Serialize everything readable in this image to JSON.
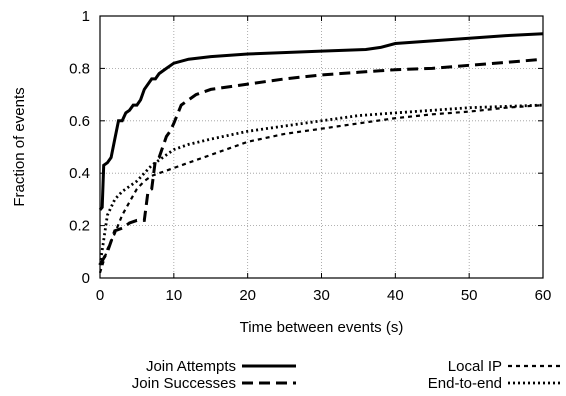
{
  "chart_data": {
    "type": "line",
    "title": "",
    "xlabel": "Time between events (s)",
    "ylabel": "Fraction of events",
    "xlim": [
      0,
      60
    ],
    "ylim": [
      0,
      1
    ],
    "x_ticks": [
      "0",
      "10",
      "20",
      "30",
      "40",
      "50",
      "60"
    ],
    "y_ticks": [
      "0",
      "0.2",
      "0.4",
      "0.6",
      "0.8",
      "1"
    ],
    "grid": true,
    "legend_position": "bottom",
    "series": [
      {
        "name": "Join Attempts",
        "style": "solid",
        "points": [
          [
            0,
            0.26
          ],
          [
            0.3,
            0.27
          ],
          [
            0.5,
            0.43
          ],
          [
            1,
            0.44
          ],
          [
            1.5,
            0.46
          ],
          [
            2,
            0.53
          ],
          [
            2.5,
            0.6
          ],
          [
            3,
            0.6
          ],
          [
            3.5,
            0.63
          ],
          [
            4,
            0.64
          ],
          [
            4.5,
            0.66
          ],
          [
            5,
            0.66
          ],
          [
            5.5,
            0.68
          ],
          [
            6,
            0.72
          ],
          [
            7,
            0.76
          ],
          [
            7.5,
            0.76
          ],
          [
            8,
            0.78
          ],
          [
            9,
            0.8
          ],
          [
            10,
            0.82
          ],
          [
            12,
            0.835
          ],
          [
            15,
            0.845
          ],
          [
            20,
            0.855
          ],
          [
            30,
            0.866
          ],
          [
            36,
            0.872
          ],
          [
            38,
            0.88
          ],
          [
            40,
            0.895
          ],
          [
            45,
            0.905
          ],
          [
            50,
            0.915
          ],
          [
            55,
            0.925
          ],
          [
            60,
            0.932
          ]
        ]
      },
      {
        "name": "Join Successes",
        "style": "dashed",
        "points": [
          [
            0,
            0.05
          ],
          [
            1,
            0.1
          ],
          [
            2,
            0.18
          ],
          [
            3,
            0.19
          ],
          [
            4,
            0.21
          ],
          [
            5,
            0.22
          ],
          [
            6,
            0.22
          ],
          [
            6.5,
            0.33
          ],
          [
            7,
            0.34
          ],
          [
            7.5,
            0.45
          ],
          [
            8,
            0.46
          ],
          [
            9,
            0.54
          ],
          [
            9.5,
            0.56
          ],
          [
            10,
            0.59
          ],
          [
            11,
            0.66
          ],
          [
            13,
            0.7
          ],
          [
            15,
            0.72
          ],
          [
            20,
            0.74
          ],
          [
            25,
            0.76
          ],
          [
            30,
            0.775
          ],
          [
            35,
            0.785
          ],
          [
            40,
            0.795
          ],
          [
            45,
            0.8
          ],
          [
            50,
            0.812
          ],
          [
            55,
            0.823
          ],
          [
            60,
            0.835
          ]
        ]
      },
      {
        "name": "Local IP",
        "style": "short-dashed",
        "points": [
          [
            0,
            0.02
          ],
          [
            1,
            0.11
          ],
          [
            2,
            0.17
          ],
          [
            3,
            0.24
          ],
          [
            4,
            0.29
          ],
          [
            5,
            0.34
          ],
          [
            6,
            0.37
          ],
          [
            7,
            0.39
          ],
          [
            8,
            0.4
          ],
          [
            9,
            0.41
          ],
          [
            10,
            0.42
          ],
          [
            12,
            0.44
          ],
          [
            15,
            0.47
          ],
          [
            20,
            0.52
          ],
          [
            25,
            0.55
          ],
          [
            30,
            0.57
          ],
          [
            35,
            0.59
          ],
          [
            40,
            0.61
          ],
          [
            45,
            0.625
          ],
          [
            50,
            0.635
          ],
          [
            55,
            0.65
          ],
          [
            60,
            0.66
          ]
        ]
      },
      {
        "name": "End-to-end",
        "style": "dotted",
        "points": [
          [
            0,
            0.05
          ],
          [
            1,
            0.24
          ],
          [
            2,
            0.3
          ],
          [
            3,
            0.33
          ],
          [
            4,
            0.35
          ],
          [
            5,
            0.37
          ],
          [
            6,
            0.4
          ],
          [
            7,
            0.43
          ],
          [
            8,
            0.45
          ],
          [
            9,
            0.47
          ],
          [
            10,
            0.49
          ],
          [
            12,
            0.51
          ],
          [
            15,
            0.53
          ],
          [
            20,
            0.56
          ],
          [
            25,
            0.58
          ],
          [
            30,
            0.6
          ],
          [
            35,
            0.62
          ],
          [
            40,
            0.63
          ],
          [
            45,
            0.64
          ],
          [
            50,
            0.65
          ],
          [
            55,
            0.655
          ],
          [
            60,
            0.66
          ]
        ]
      }
    ]
  }
}
